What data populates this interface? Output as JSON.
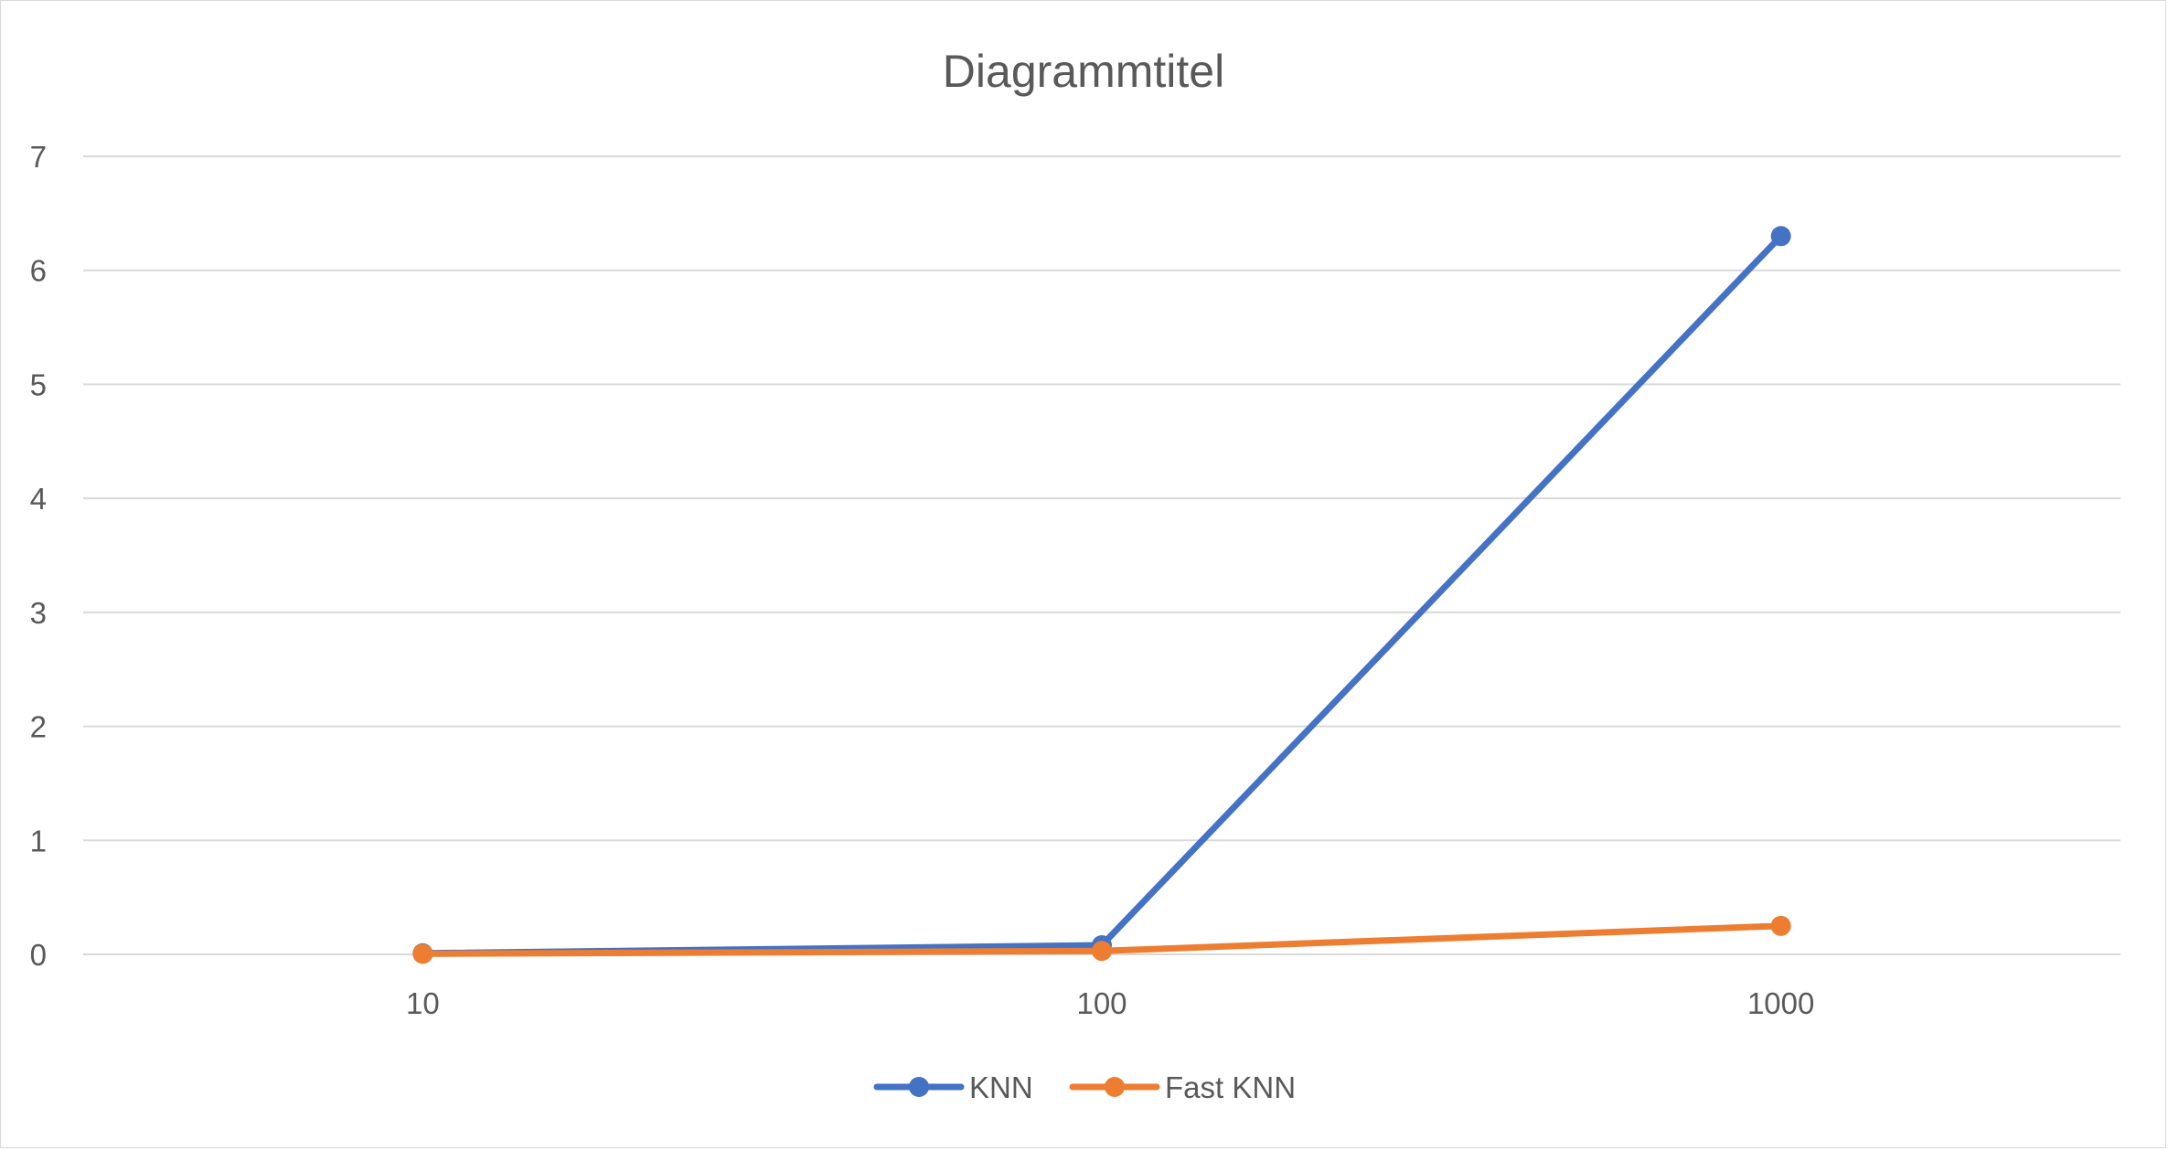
{
  "chart_data": {
    "type": "line",
    "title": "Diagrammtitel",
    "xlabel": "",
    "ylabel": "",
    "categories": [
      "10",
      "100",
      "1000"
    ],
    "ylim": [
      0,
      7
    ],
    "yticks": [
      "0",
      "1",
      "2",
      "3",
      "4",
      "5",
      "6",
      "7"
    ],
    "grid": true,
    "legend_position": "bottom",
    "series": [
      {
        "name": "KNN",
        "color": "#4472c4",
        "values": [
          0.01,
          0.08,
          6.3
        ]
      },
      {
        "name": "Fast KNN",
        "color": "#ed7d31",
        "values": [
          0.005,
          0.03,
          0.25
        ]
      }
    ]
  }
}
